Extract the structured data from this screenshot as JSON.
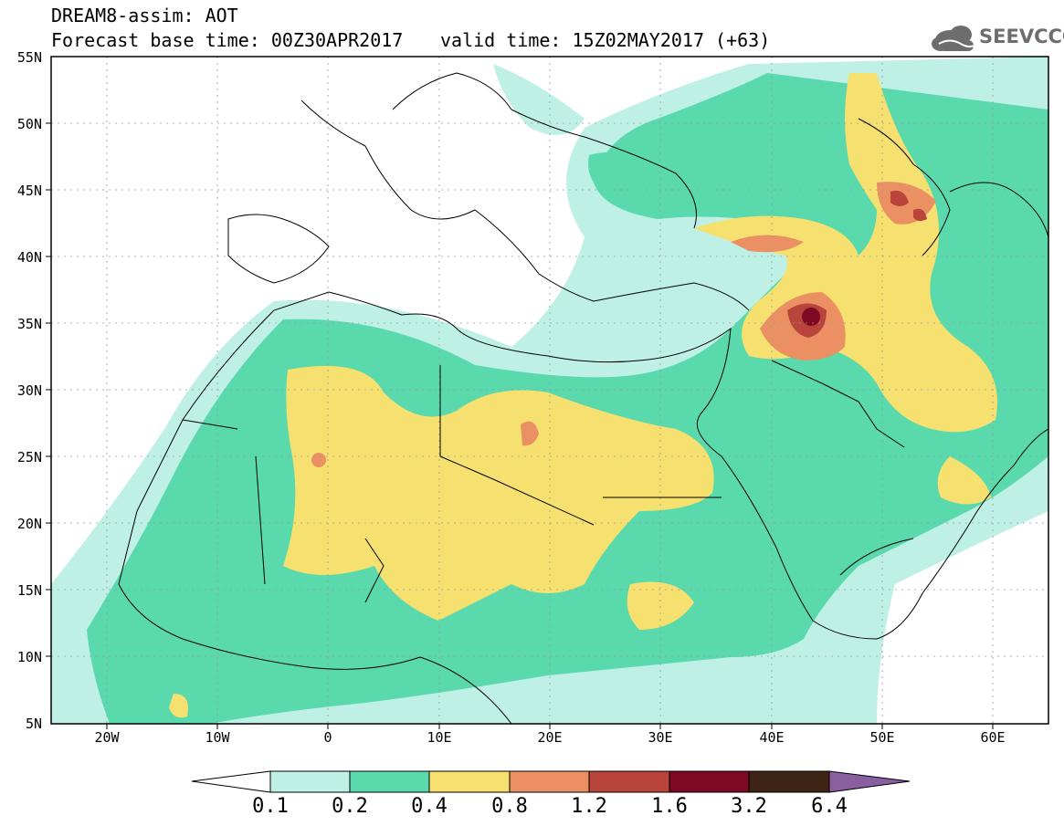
{
  "header": {
    "model_line": "DREAM8-assim: AOT",
    "base_time_line": "Forecast base time: 00Z30APR2017",
    "valid_time_line": "valid time: 15Z02MAY2017 (+63)",
    "logo_text": "SEEVCCC"
  },
  "map": {
    "lat_labels": [
      "55N",
      "50N",
      "45N",
      "40N",
      "35N",
      "30N",
      "25N",
      "20N",
      "15N",
      "10N",
      "5N"
    ],
    "lon_labels": [
      "20W",
      "10W",
      "0",
      "10E",
      "20E",
      "30E",
      "40E",
      "50E",
      "60E"
    ],
    "lon_range": [
      -25,
      65
    ],
    "lat_range": [
      5,
      55
    ],
    "grid": true
  },
  "colorbar": {
    "labels": [
      "0.1",
      "0.2",
      "0.4",
      "0.8",
      "1.2",
      "1.6",
      "3.2",
      "6.4"
    ],
    "colors": [
      "#ffffff",
      "#bff0e6",
      "#5ad9ac",
      "#f5e070",
      "#eb9063",
      "#b8443c",
      "#7d0a22",
      "#3d2414",
      "#8a5fa0"
    ]
  },
  "colors": {
    "aot_0_1": "#bff0e6",
    "aot_0_2": "#5ad9ac",
    "aot_0_4": "#f5e070",
    "aot_0_8": "#eb9063",
    "aot_1_2": "#b8443c",
    "aot_1_6": "#7d0a22"
  }
}
